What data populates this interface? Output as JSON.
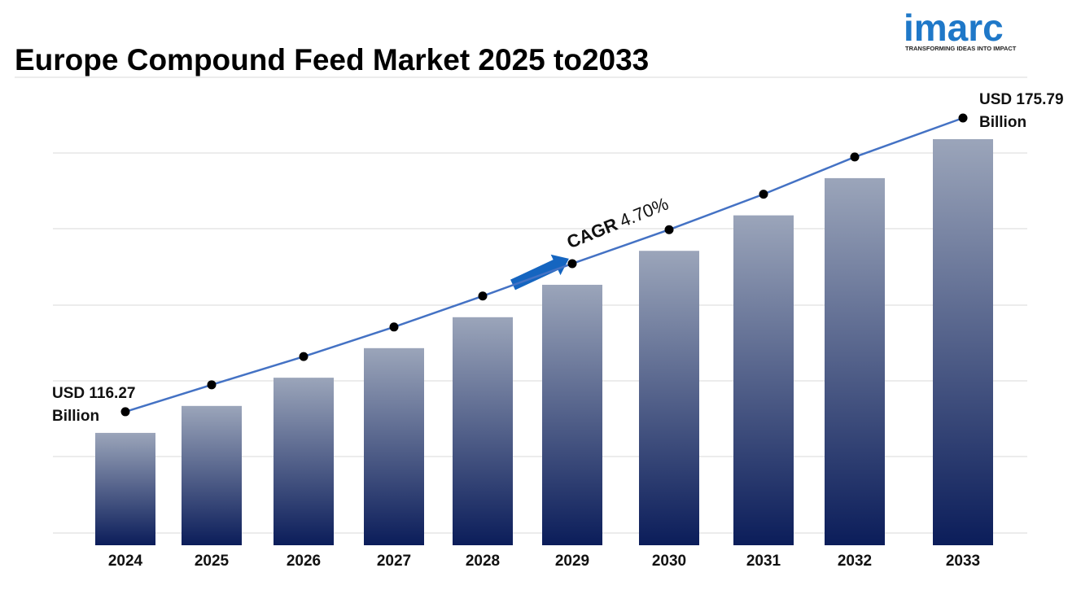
{
  "chart_data": {
    "type": "bar-line",
    "title": "Europe Compound Feed Market 2025 to2033",
    "categories": [
      "2024",
      "2025",
      "2026",
      "2027",
      "2028",
      "2029",
      "2030",
      "2031",
      "2032",
      "2033"
    ],
    "values": [
      116.27,
      121.73,
      127.45,
      133.44,
      139.71,
      146.28,
      153.16,
      160.35,
      167.89,
      175.79
    ],
    "value_labels": [
      "USD 116.27 Billion",
      null,
      null,
      null,
      null,
      null,
      null,
      null,
      null,
      "USD 175.79 Billion"
    ],
    "ylim": [
      93.5,
      187.5
    ],
    "line_color": "#4472c4",
    "bar_color_top": "#9ba5ba",
    "bar_color_bottom": "#0b1d5a",
    "grid": true,
    "annotation": {
      "label": "CAGR",
      "text": "4.70%"
    }
  },
  "logo": {
    "name": "imarc",
    "tagline": "TRANSFORMING IDEAS INTO IMPACT"
  }
}
